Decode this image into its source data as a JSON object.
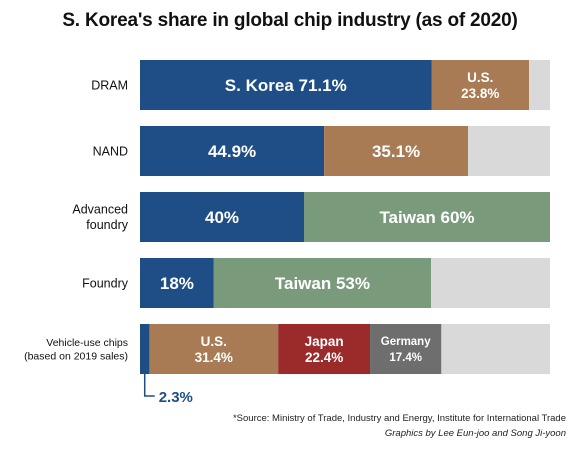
{
  "chart_data": {
    "type": "bar",
    "orientation": "horizontal",
    "stacked": true,
    "title": "S. Korea's share in global chip industry (as of 2020)",
    "xlim": [
      0,
      100
    ],
    "unit": "%",
    "colors": {
      "S. Korea": "#1f4e87",
      "U.S.": "#a87b55",
      "Taiwan": "#7a9a7c",
      "Japan": "#9b2a2a",
      "Germany": "#6e6e6e",
      "Others": "#d9d9d9"
    },
    "categories": [
      {
        "label": [
          "DRAM"
        ],
        "segments": [
          {
            "series": "S. Korea",
            "value": 71.1,
            "text": [
              "S. Korea 71.1%"
            ]
          },
          {
            "series": "U.S.",
            "value": 23.8,
            "text": [
              "U.S.",
              "23.8%"
            ]
          },
          {
            "series": "Others",
            "value": 5.1,
            "text": []
          }
        ]
      },
      {
        "label": [
          "NAND"
        ],
        "segments": [
          {
            "series": "S. Korea",
            "value": 44.9,
            "text": [
              "44.9%"
            ]
          },
          {
            "series": "U.S.",
            "value": 35.1,
            "text": [
              "35.1%"
            ]
          },
          {
            "series": "Others",
            "value": 20.0,
            "text": []
          }
        ]
      },
      {
        "label": [
          "Advanced",
          "foundry"
        ],
        "segments": [
          {
            "series": "S. Korea",
            "value": 40,
            "text": [
              "40%"
            ]
          },
          {
            "series": "Taiwan",
            "value": 60,
            "text": [
              "Taiwan 60%"
            ]
          }
        ]
      },
      {
        "label": [
          "Foundry"
        ],
        "segments": [
          {
            "series": "S. Korea",
            "value": 18,
            "text": [
              "18%"
            ]
          },
          {
            "series": "Taiwan",
            "value": 53,
            "text": [
              "Taiwan 53%"
            ]
          },
          {
            "series": "Others",
            "value": 29,
            "text": []
          }
        ]
      },
      {
        "label": [
          "Vehicle-use chips",
          "(based on 2019 sales)"
        ],
        "segments": [
          {
            "series": "S. Korea",
            "value": 2.3,
            "text": [],
            "callout": "2.3%"
          },
          {
            "series": "U.S.",
            "value": 31.4,
            "text": [
              "U.S.",
              "31.4%"
            ]
          },
          {
            "series": "Japan",
            "value": 22.4,
            "text": [
              "Japan",
              "22.4%"
            ]
          },
          {
            "series": "Germany",
            "value": 17.4,
            "text": [
              "Germany",
              "17.4%"
            ]
          },
          {
            "series": "Others",
            "value": 26.5,
            "text": []
          }
        ]
      }
    ]
  },
  "footer": {
    "source": "*Source: Ministry of Trade, Industry and Energy, Institute for International Trade",
    "credit": "Graphics by Lee Eun-joo and Song Ji-yoon"
  }
}
